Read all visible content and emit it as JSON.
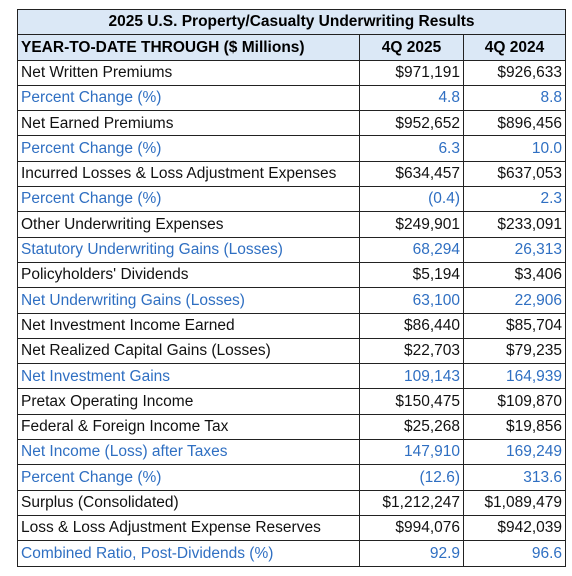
{
  "table": {
    "title": "2025 U.S. Property/Casualty Underwriting Results",
    "header": {
      "label": "YEAR-TO-DATE THROUGH ($ Millions)",
      "col1": "4Q 2025",
      "col2": "4Q 2024"
    },
    "colors": {
      "header_bg": "#dbe8f6",
      "blue_text": "#2f6fc2",
      "black_text": "#111111"
    },
    "rows": [
      {
        "label": "Net Written Premiums",
        "v2025": "$971,191",
        "v2024": "$926,633",
        "style": "black"
      },
      {
        "label": "Percent Change (%)",
        "v2025": "4.8",
        "v2024": "8.8",
        "style": "blue"
      },
      {
        "label": "Net Earned Premiums",
        "v2025": "$952,652",
        "v2024": "$896,456",
        "style": "black"
      },
      {
        "label": "Percent Change (%)",
        "v2025": "6.3",
        "v2024": "10.0",
        "style": "blue"
      },
      {
        "label": "Incurred Losses & Loss Adjustment Expenses",
        "v2025": "$634,457",
        "v2024": "$637,053",
        "style": "black"
      },
      {
        "label": "Percent Change (%)",
        "v2025": "(0.4)",
        "v2024": "2.3",
        "style": "blue"
      },
      {
        "label": "Other Underwriting Expenses",
        "v2025": "$249,901",
        "v2024": "$233,091",
        "style": "black"
      },
      {
        "label": "Statutory Underwriting Gains (Losses)",
        "v2025": "68,294",
        "v2024": "26,313",
        "style": "blue"
      },
      {
        "label": "Policyholders' Dividends",
        "v2025": "$5,194",
        "v2024": "$3,406",
        "style": "black"
      },
      {
        "label": "Net Underwriting Gains (Losses)",
        "v2025": "63,100",
        "v2024": "22,906",
        "style": "blue"
      },
      {
        "label": "Net Investment Income Earned",
        "v2025": "$86,440",
        "v2024": "$85,704",
        "style": "black"
      },
      {
        "label": "Net Realized Capital Gains (Losses)",
        "v2025": "$22,703",
        "v2024": "$79,235",
        "style": "black"
      },
      {
        "label": "Net Investment Gains",
        "v2025": "109,143",
        "v2024": "164,939",
        "style": "blue"
      },
      {
        "label": "Pretax Operating Income",
        "v2025": "$150,475",
        "v2024": "$109,870",
        "style": "black"
      },
      {
        "label": "Federal & Foreign Income Tax",
        "v2025": "$25,268",
        "v2024": "$19,856",
        "style": "black"
      },
      {
        "label": "Net Income (Loss) after Taxes",
        "v2025": "147,910",
        "v2024": "169,249",
        "style": "blue"
      },
      {
        "label": "Percent Change (%)",
        "v2025": "(12.6)",
        "v2024": "313.6",
        "style": "blue"
      },
      {
        "label": "Surplus (Consolidated)",
        "v2025": "$1,212,247",
        "v2024": "$1,089,479",
        "style": "black"
      },
      {
        "label": "Loss & Loss Adjustment Expense Reserves",
        "v2025": "$994,076",
        "v2024": "$942,039",
        "style": "black"
      },
      {
        "label": "Combined Ratio, Post-Dividends (%)",
        "v2025": "92.9",
        "v2024": "96.6",
        "style": "blue"
      }
    ]
  }
}
